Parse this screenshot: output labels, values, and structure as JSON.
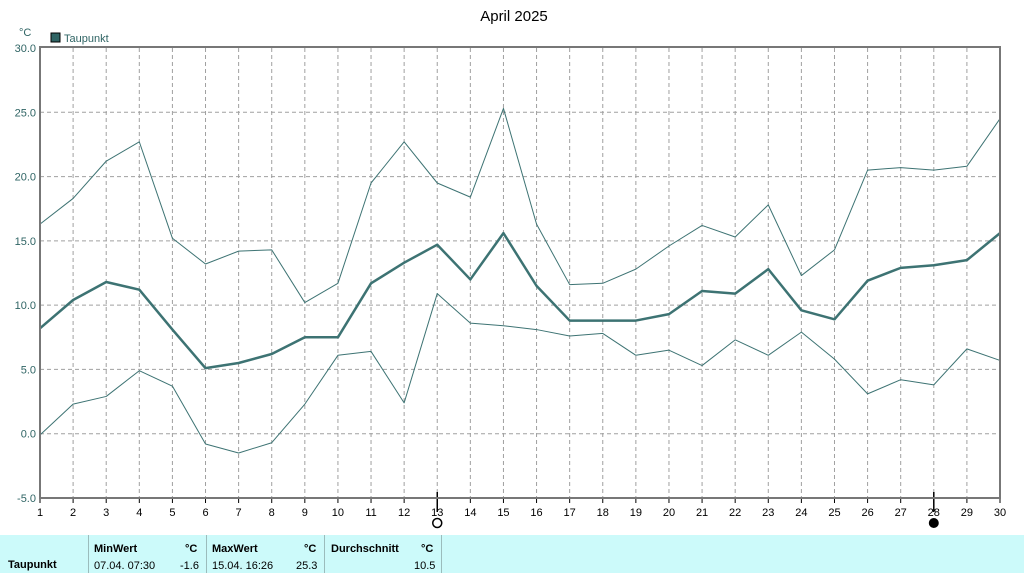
{
  "chart_data": {
    "type": "line",
    "title": "April 2025",
    "unit_label": "°C",
    "ylim": [
      -5,
      30
    ],
    "yticks": [
      "-5.0",
      "0.0",
      "5.0",
      "10.0",
      "15.0",
      "20.0",
      "25.0",
      "30.0"
    ],
    "x": [
      1,
      2,
      3,
      4,
      5,
      6,
      7,
      8,
      9,
      10,
      11,
      12,
      13,
      14,
      15,
      16,
      17,
      18,
      19,
      20,
      21,
      22,
      23,
      24,
      25,
      26,
      27,
      28,
      29,
      30
    ],
    "legend": "Taupunkt",
    "series": [
      {
        "name": "Taupunkt",
        "values": [
          8.2,
          10.4,
          11.8,
          11.2,
          8.1,
          5.1,
          5.5,
          6.2,
          7.5,
          7.5,
          11.7,
          13.3,
          14.7,
          12.0,
          15.6,
          11.5,
          8.8,
          8.8,
          8.8,
          9.3,
          11.1,
          10.9,
          12.8,
          9.6,
          8.9,
          11.9,
          12.9,
          13.1,
          13.5,
          15.6
        ]
      },
      {
        "values": [
          16.3,
          18.3,
          21.2,
          22.7,
          15.2,
          13.2,
          14.2,
          14.3,
          10.2,
          11.7,
          19.5,
          22.7,
          19.5,
          18.4,
          25.3,
          16.3,
          11.6,
          11.7,
          12.8,
          14.6,
          16.2,
          15.3,
          17.8,
          12.3,
          14.3,
          20.5,
          20.7,
          20.5,
          20.8,
          24.5
        ]
      },
      {
        "values": [
          -0.1,
          2.3,
          2.9,
          4.9,
          3.7,
          -0.8,
          -1.5,
          -0.7,
          2.3,
          6.1,
          6.4,
          2.4,
          10.9,
          8.6,
          8.4,
          8.1,
          7.6,
          7.8,
          6.1,
          6.5,
          5.3,
          7.3,
          6.1,
          7.9,
          5.8,
          3.1,
          4.2,
          3.8,
          6.6,
          5.7
        ]
      }
    ],
    "markers": [
      {
        "day": 13,
        "symbol": "open-circle"
      },
      {
        "day": 28,
        "symbol": "filled-circle"
      }
    ],
    "grid": true,
    "colors": {
      "line": "#3d7373",
      "grid": "#a0a0a0",
      "legend_swatch": "#2f6464"
    }
  },
  "stats": {
    "label": "Taupunkt",
    "min_header": "MinWert",
    "min_unit": "°C",
    "min_time": "07.04.  07:30",
    "min_value": "-1.6",
    "max_header": "MaxWert",
    "max_unit": "°C",
    "max_time": "15.04.  16:26",
    "max_value": "25.3",
    "avg_header": "Durchschnitt",
    "avg_unit": "°C",
    "avg_value": "10.5"
  }
}
